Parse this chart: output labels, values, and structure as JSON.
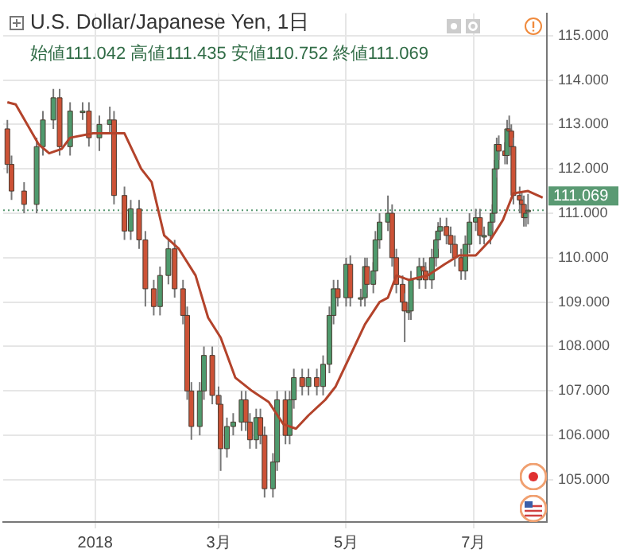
{
  "chart_data": {
    "type": "candlestick",
    "title": "U.S. Dollar/Japanese Yen, 1日",
    "subtitle": "始値111.042 高値111.435 安値110.752 終値111.069",
    "xlim": [
      "2017-11-18",
      "2018-08-05"
    ],
    "xticks": [
      {
        "value": "2018-01-01",
        "label": "2018"
      },
      {
        "value": "2018-03-01",
        "label": "3月"
      },
      {
        "value": "2018-05-01",
        "label": "5月"
      },
      {
        "value": "2018-07-01",
        "label": "7月"
      }
    ],
    "ylim": [
      104.05,
      115.5
    ],
    "yticks": [
      {
        "value": 105,
        "label": "105.000"
      },
      {
        "value": 106,
        "label": "106.000"
      },
      {
        "value": 107,
        "label": "107.000"
      },
      {
        "value": 108,
        "label": "108.000"
      },
      {
        "value": 109,
        "label": "109.000"
      },
      {
        "value": 110,
        "label": "110.000"
      },
      {
        "value": 111,
        "label": "111.000"
      },
      {
        "value": 112,
        "label": "112.000"
      },
      {
        "value": 113,
        "label": "113.000"
      },
      {
        "value": 114,
        "label": "114.000"
      },
      {
        "value": 115,
        "label": "115.000"
      }
    ],
    "grid": true,
    "legend": false,
    "ref_lines": [
      {
        "axis": "y",
        "value": 111.069,
        "label": "111.069",
        "color": "#5a9a73",
        "line_style": "dotted"
      }
    ],
    "series": [
      {
        "type": "candlestick",
        "colors": [
          "#cc5236",
          "#cc5236",
          "#cc5236",
          "#4f9a6d",
          "#4f9a6d",
          "#4f9a6d",
          "#cc5236",
          "#4f9a6d",
          "#4f9a6d",
          "#cc5236",
          "#4f9a6d",
          "#4f9a6d",
          "#cc5236",
          "#cc5236",
          "#4f9a6d",
          "#cc5236",
          "#cc5236",
          "#cc5236",
          "#4f9a6d",
          "#4f9a6d",
          "#cc5236",
          "#cc5236",
          "#cc5236",
          "#cc5236",
          "#4f9a6d",
          "#4f9a6d",
          "#cc5236",
          "#cc5236",
          "#cc5236",
          "#4f9a6d",
          "#4f9a6d",
          "#4f9a6d",
          "#cc5236",
          "#cc5236",
          "#4f9a6d",
          "#cc5236",
          "#cc5236",
          "#4f9a6d",
          "#4f9a6d",
          "#cc5236",
          "#4f9a6d",
          "#4f9a6d",
          "#cc5236",
          "#4f9a6d",
          "#cc5236",
          "#4f9a6d",
          "#4f9a6d",
          "#4f9a6d",
          "#cc5236",
          "#4f9a6d",
          "#cc5236",
          "#4f9a6d",
          "#4f9a6d",
          "#cc5236",
          "#4f9a6d",
          "#4f9a6d",
          "#4f9a6d",
          "#4f9a6d",
          "#cc5236",
          "#cc5236",
          "#cc5236",
          "#cc5236",
          "#4f9a6d",
          "#4f9a6d",
          "#4f9a6d",
          "#cc5236",
          "#cc5236",
          "#4f9a6d",
          "#4f9a6d",
          "#4f9a6d",
          "#4f9a6d",
          "#cc5236",
          "#cc5236",
          "#cc5236",
          "#cc5236",
          "#4f9a6d",
          "#4f9a6d",
          "#4f9a6d",
          "#cc5236",
          "#4f9a6d",
          "#4f9a6d",
          "#4f9a6d",
          "#4f9a6d",
          "#4f9a6d",
          "#cc5236",
          "#cc5236",
          "#4f9a6d",
          "#cc5236",
          "#cc5236",
          "#cc5236",
          "#cc5236",
          "#cc5236",
          "#cc5236",
          "#4f9a6d",
          "#4f9a6d"
        ],
        "x": [
          "2017-11-20",
          "2017-11-22",
          "2017-11-28",
          "2017-12-04",
          "2017-12-07",
          "2017-12-12",
          "2017-12-15",
          "2017-12-20",
          "2017-12-26",
          "2017-12-29",
          "2018-01-03",
          "2018-01-08",
          "2018-01-10",
          "2018-01-15",
          "2018-01-18",
          "2018-01-22",
          "2018-01-25",
          "2018-01-29",
          "2018-02-01",
          "2018-02-05",
          "2018-02-08",
          "2018-02-12",
          "2018-02-14",
          "2018-02-16",
          "2018-02-20",
          "2018-02-22",
          "2018-02-26",
          "2018-03-01",
          "2018-03-02",
          "2018-03-05",
          "2018-03-08",
          "2018-03-12",
          "2018-03-14",
          "2018-03-16",
          "2018-03-19",
          "2018-03-21",
          "2018-03-23",
          "2018-03-27",
          "2018-03-29",
          "2018-04-02",
          "2018-04-04",
          "2018-04-06",
          "2018-04-10",
          "2018-04-13",
          "2018-04-17",
          "2018-04-20",
          "2018-04-23",
          "2018-04-25",
          "2018-04-27",
          "2018-05-01",
          "2018-05-03",
          "2018-05-08",
          "2018-05-10",
          "2018-05-11",
          "2018-05-14",
          "2018-05-15",
          "2018-05-17",
          "2018-05-21",
          "2018-05-23",
          "2018-05-25",
          "2018-05-28",
          "2018-05-29",
          "2018-05-31",
          "2018-06-01",
          "2018-06-05",
          "2018-06-07",
          "2018-06-08",
          "2018-06-11",
          "2018-06-13",
          "2018-06-14",
          "2018-06-15",
          "2018-06-18",
          "2018-06-20",
          "2018-06-22",
          "2018-06-25",
          "2018-06-27",
          "2018-06-29",
          "2018-07-02",
          "2018-07-04",
          "2018-07-06",
          "2018-07-09",
          "2018-07-10",
          "2018-07-11",
          "2018-07-12",
          "2018-07-13",
          "2018-07-16",
          "2018-07-17",
          "2018-07-18",
          "2018-07-19",
          "2018-07-20",
          "2018-07-23",
          "2018-07-24",
          "2018-07-25",
          "2018-07-26",
          "2018-07-27"
        ],
        "ohlc": [
          [
            112.9,
            113.1,
            111.9,
            112.1
          ],
          [
            112.1,
            112.3,
            111.3,
            111.5
          ],
          [
            111.5,
            111.7,
            111.0,
            111.2
          ],
          [
            111.2,
            112.7,
            111.0,
            112.5
          ],
          [
            112.5,
            113.3,
            112.3,
            113.1
          ],
          [
            113.1,
            113.8,
            112.9,
            113.6
          ],
          [
            113.6,
            113.8,
            112.3,
            112.5
          ],
          [
            112.5,
            113.5,
            112.3,
            113.3
          ],
          [
            113.3,
            113.5,
            113.1,
            113.3
          ],
          [
            113.3,
            113.5,
            112.5,
            112.7
          ],
          [
            112.7,
            113.2,
            112.4,
            113.0
          ],
          [
            113.0,
            113.4,
            112.8,
            113.1
          ],
          [
            113.1,
            113.3,
            111.2,
            111.4
          ],
          [
            111.4,
            111.6,
            110.4,
            110.6
          ],
          [
            110.6,
            111.3,
            110.4,
            111.1
          ],
          [
            111.1,
            111.3,
            110.2,
            110.4
          ],
          [
            110.4,
            110.6,
            108.9,
            109.3
          ],
          [
            109.3,
            109.5,
            108.7,
            108.9
          ],
          [
            108.9,
            109.8,
            108.7,
            109.6
          ],
          [
            109.6,
            110.4,
            109.4,
            110.2
          ],
          [
            110.2,
            110.4,
            109.1,
            109.3
          ],
          [
            109.3,
            109.5,
            108.5,
            108.7
          ],
          [
            108.7,
            108.9,
            106.8,
            107.0
          ],
          [
            107.0,
            107.2,
            105.9,
            106.2
          ],
          [
            106.2,
            107.2,
            106.0,
            107.0
          ],
          [
            107.0,
            108.0,
            106.8,
            107.8
          ],
          [
            107.8,
            108.0,
            106.7,
            106.9
          ],
          [
            106.9,
            107.1,
            106.5,
            106.7
          ],
          [
            106.7,
            106.9,
            105.2,
            105.7
          ],
          [
            105.7,
            106.4,
            105.5,
            106.2
          ],
          [
            106.2,
            106.5,
            106.0,
            106.3
          ],
          [
            106.3,
            107.0,
            106.1,
            106.8
          ],
          [
            106.8,
            107.0,
            106.1,
            106.3
          ],
          [
            106.3,
            106.5,
            105.7,
            105.9
          ],
          [
            105.9,
            106.6,
            105.7,
            106.4
          ],
          [
            106.4,
            106.6,
            105.8,
            106.0
          ],
          [
            106.0,
            106.2,
            104.6,
            104.8
          ],
          [
            104.8,
            105.6,
            104.6,
            105.4
          ],
          [
            105.4,
            107.0,
            105.2,
            106.8
          ],
          [
            106.8,
            107.0,
            105.8,
            106.0
          ],
          [
            106.0,
            107.0,
            105.8,
            106.8
          ],
          [
            106.8,
            107.5,
            106.6,
            107.3
          ],
          [
            107.3,
            107.5,
            106.9,
            107.1
          ],
          [
            107.1,
            107.5,
            106.9,
            107.3
          ],
          [
            107.3,
            107.5,
            106.9,
            107.1
          ],
          [
            107.1,
            107.8,
            106.9,
            107.6
          ],
          [
            107.6,
            108.9,
            107.4,
            108.7
          ],
          [
            108.7,
            109.5,
            108.5,
            109.3
          ],
          [
            109.3,
            109.5,
            108.9,
            109.1
          ],
          [
            109.1,
            110.0,
            108.9,
            109.85
          ],
          [
            109.85,
            110.05,
            108.9,
            109.1
          ],
          [
            109.1,
            109.3,
            108.9,
            109.1
          ],
          [
            109.1,
            110.0,
            108.9,
            109.8
          ],
          [
            109.8,
            110.0,
            109.2,
            109.4
          ],
          [
            109.4,
            109.9,
            109.2,
            109.7
          ],
          [
            109.7,
            110.6,
            109.5,
            110.4
          ],
          [
            110.4,
            111.0,
            110.2,
            110.8
          ],
          [
            110.8,
            111.4,
            110.6,
            111.0
          ],
          [
            111.0,
            111.2,
            109.8,
            110.0
          ],
          [
            110.0,
            110.2,
            109.2,
            109.4
          ],
          [
            109.4,
            109.6,
            108.8,
            109.0
          ],
          [
            109.0,
            109.2,
            108.1,
            108.8
          ],
          [
            108.8,
            109.0,
            108.6,
            108.8
          ],
          [
            108.8,
            109.7,
            108.6,
            109.5
          ],
          [
            109.5,
            110.0,
            109.3,
            109.8
          ],
          [
            109.8,
            110.0,
            109.5,
            109.7
          ],
          [
            109.7,
            109.9,
            109.3,
            109.5
          ],
          [
            109.5,
            110.2,
            109.3,
            110.0
          ],
          [
            110.0,
            110.6,
            109.8,
            110.4
          ],
          [
            110.4,
            110.8,
            110.2,
            110.6
          ],
          [
            110.6,
            110.9,
            110.4,
            110.7
          ],
          [
            110.7,
            110.9,
            110.3,
            110.5
          ],
          [
            110.5,
            110.7,
            110.1,
            110.3
          ],
          [
            110.3,
            110.5,
            109.8,
            110.0
          ],
          [
            110.0,
            110.2,
            109.5,
            109.7
          ],
          [
            109.7,
            110.5,
            109.5,
            110.3
          ],
          [
            110.3,
            111.0,
            110.1,
            110.8
          ],
          [
            110.8,
            111.1,
            110.6,
            110.9
          ],
          [
            110.9,
            111.1,
            110.3,
            110.5
          ],
          [
            110.5,
            110.7,
            110.3,
            110.5
          ],
          [
            110.5,
            111.0,
            110.3,
            110.8
          ],
          [
            110.8,
            111.2,
            110.6,
            111.0
          ],
          [
            111.0,
            112.2,
            110.8,
            112.0
          ],
          [
            112.0,
            112.7,
            111.8,
            112.55
          ],
          [
            112.55,
            112.75,
            112.2,
            112.4
          ],
          [
            112.4,
            112.6,
            112.1,
            112.3
          ],
          [
            112.3,
            113.1,
            112.1,
            112.9
          ],
          [
            112.9,
            113.2,
            112.6,
            112.85
          ],
          [
            112.85,
            113.0,
            112.3,
            112.5
          ],
          [
            112.5,
            112.7,
            111.2,
            111.4
          ],
          [
            111.4,
            111.6,
            111.0,
            111.3
          ],
          [
            111.3,
            111.5,
            111.0,
            111.2
          ],
          [
            111.2,
            111.4,
            110.7,
            110.9
          ],
          [
            110.9,
            111.2,
            110.7,
            111.0
          ],
          [
            111.042,
            111.435,
            110.752,
            111.069
          ]
        ]
      },
      {
        "type": "line",
        "color": "#b3432b",
        "x": [
          "2017-11-20",
          "2017-11-24",
          "2017-12-05",
          "2017-12-10",
          "2017-12-16",
          "2017-12-20",
          "2017-12-31",
          "2018-01-15",
          "2018-01-23",
          "2018-01-28",
          "2018-02-03",
          "2018-02-10",
          "2018-02-18",
          "2018-02-24",
          "2018-03-02",
          "2018-03-09",
          "2018-03-17",
          "2018-03-25",
          "2018-04-01",
          "2018-04-07",
          "2018-04-13",
          "2018-04-21",
          "2018-04-26",
          "2018-05-02",
          "2018-05-10",
          "2018-05-17",
          "2018-05-21",
          "2018-05-25",
          "2018-05-31",
          "2018-06-09",
          "2018-06-17",
          "2018-06-24",
          "2018-07-02",
          "2018-07-09",
          "2018-07-15",
          "2018-07-20",
          "2018-07-27",
          "2018-08-03"
        ],
        "values": [
          113.5,
          113.45,
          112.55,
          112.35,
          112.45,
          112.7,
          112.8,
          112.8,
          112.0,
          111.7,
          110.5,
          110.2,
          109.6,
          108.65,
          108.2,
          107.3,
          107.0,
          106.75,
          106.25,
          106.15,
          106.45,
          106.8,
          107.1,
          107.7,
          108.5,
          109.0,
          109.1,
          109.6,
          109.5,
          109.6,
          109.85,
          110.05,
          110.05,
          110.4,
          110.85,
          111.45,
          111.5,
          111.35
        ]
      }
    ]
  }
}
